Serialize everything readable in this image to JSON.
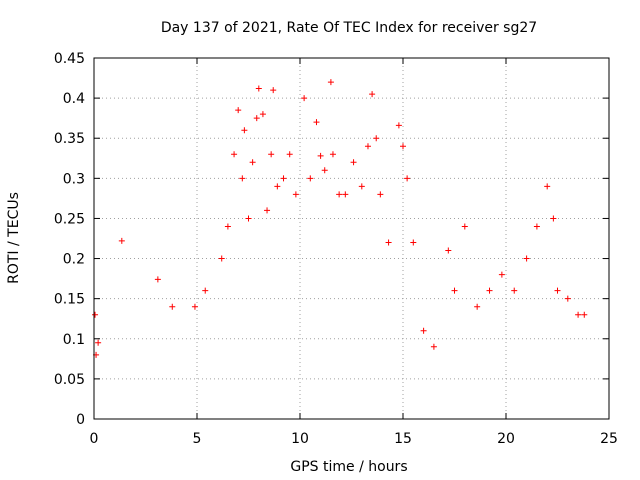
{
  "chart_data": {
    "type": "scatter",
    "title": "Day 137 of 2021, Rate Of TEC Index for receiver sg27",
    "xlabel": "GPS time / hours",
    "ylabel": "ROTI / TECUs",
    "xlim": [
      0,
      25
    ],
    "ylim": [
      0,
      0.45
    ],
    "x_ticks": [
      "0",
      "5",
      "10",
      "15",
      "20",
      "25"
    ],
    "y_ticks": [
      "0",
      "0.05",
      "0.1",
      "0.15",
      "0.2",
      "0.25",
      "0.3",
      "0.35",
      "0.4",
      "0.45"
    ],
    "grid": true,
    "marker": "+",
    "color": "#ff0000",
    "series": [
      {
        "x": [
          0.05,
          0.1,
          0.2,
          1.35,
          3.1,
          3.8,
          4.9,
          5.4,
          6.2,
          6.5,
          6.8,
          7.0,
          7.2,
          7.3,
          7.5,
          7.7,
          7.9,
          8.0,
          8.2,
          8.4,
          8.6,
          8.7,
          8.9,
          9.2,
          9.5,
          9.8,
          10.2,
          10.5,
          10.8,
          11.0,
          11.2,
          11.5,
          11.6,
          11.9,
          12.2,
          12.6,
          13.0,
          13.3,
          13.5,
          13.7,
          13.9,
          14.3,
          14.8,
          15.0,
          15.2,
          15.5,
          16.0,
          16.5,
          17.2,
          17.5,
          18.0,
          18.6,
          19.2,
          19.8,
          20.4,
          21.0,
          21.5,
          22.0,
          22.3,
          22.5,
          23.0,
          23.5,
          23.8
        ],
        "y": [
          0.13,
          0.08,
          0.095,
          0.222,
          0.174,
          0.14,
          0.14,
          0.16,
          0.2,
          0.24,
          0.33,
          0.385,
          0.3,
          0.36,
          0.25,
          0.32,
          0.375,
          0.412,
          0.38,
          0.26,
          0.33,
          0.41,
          0.29,
          0.3,
          0.33,
          0.28,
          0.4,
          0.3,
          0.37,
          0.328,
          0.31,
          0.42,
          0.33,
          0.28,
          0.28,
          0.32,
          0.29,
          0.34,
          0.405,
          0.35,
          0.28,
          0.22,
          0.366,
          0.34,
          0.3,
          0.22,
          0.11,
          0.09,
          0.21,
          0.16,
          0.24,
          0.14,
          0.16,
          0.18,
          0.16,
          0.2,
          0.24,
          0.29,
          0.25,
          0.16,
          0.15,
          0.13,
          0.13
        ]
      }
    ]
  }
}
